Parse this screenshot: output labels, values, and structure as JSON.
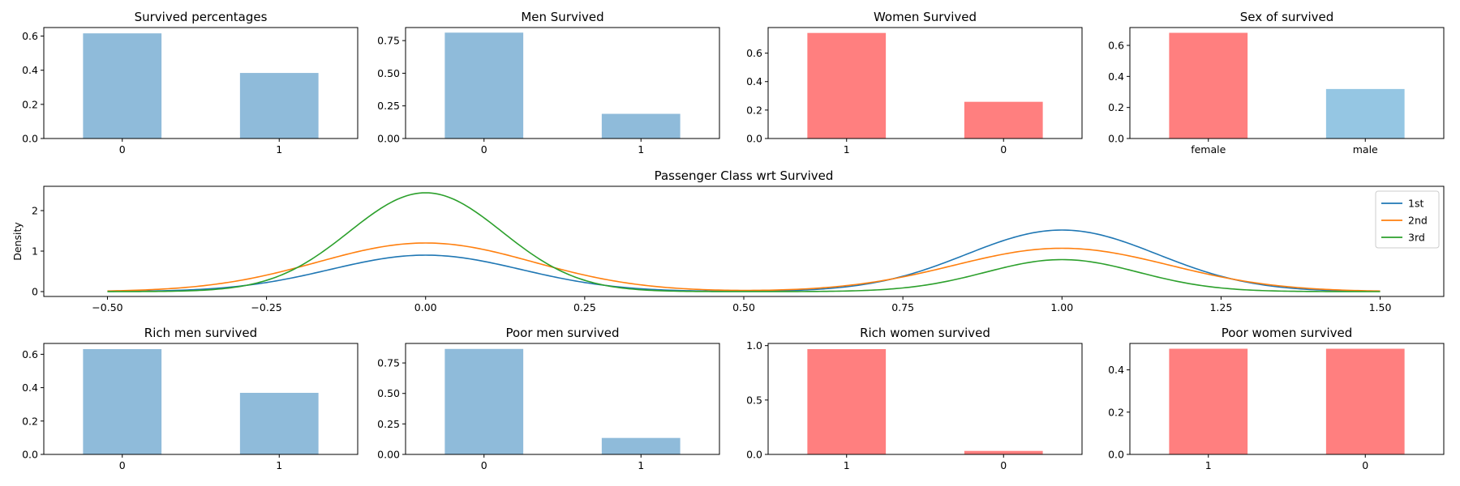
{
  "chart_data": [
    {
      "id": "survived",
      "type": "bar",
      "title": "Survived percentages",
      "categories": [
        "0",
        "1"
      ],
      "values": [
        0.616,
        0.384
      ],
      "ylim": [
        0,
        0.65
      ],
      "yticks": [
        0.0,
        0.2,
        0.4,
        0.6
      ],
      "ytick_labels": [
        "0.0",
        "0.2",
        "0.4",
        "0.6"
      ],
      "colors": [
        "#8fbbda",
        "#8fbbda"
      ],
      "grid": false
    },
    {
      "id": "men",
      "type": "bar",
      "title": "Men Survived",
      "categories": [
        "0",
        "1"
      ],
      "values": [
        0.811,
        0.189
      ],
      "ylim": [
        0,
        0.85
      ],
      "yticks": [
        0.0,
        0.25,
        0.5,
        0.75
      ],
      "ytick_labels": [
        "0.00",
        "0.25",
        "0.50",
        "0.75"
      ],
      "colors": [
        "#8fbbda",
        "#8fbbda"
      ],
      "grid": false
    },
    {
      "id": "women",
      "type": "bar",
      "title": "Women Survived",
      "categories": [
        "1",
        "0"
      ],
      "values": [
        0.742,
        0.258
      ],
      "ylim": [
        0,
        0.78
      ],
      "yticks": [
        0.0,
        0.2,
        0.4,
        0.6
      ],
      "ytick_labels": [
        "0.0",
        "0.2",
        "0.4",
        "0.6"
      ],
      "colors": [
        "#ff7f7f",
        "#ff7f7f"
      ],
      "grid": false
    },
    {
      "id": "sex",
      "type": "bar",
      "title": "Sex of survived",
      "categories": [
        "female",
        "male"
      ],
      "values": [
        0.681,
        0.319
      ],
      "ylim": [
        0,
        0.715
      ],
      "yticks": [
        0.0,
        0.2,
        0.4,
        0.6
      ],
      "ytick_labels": [
        "0.0",
        "0.2",
        "0.4",
        "0.6"
      ],
      "colors": [
        "#ff7f7f",
        "#95c6e3"
      ],
      "grid": false
    },
    {
      "id": "pclass",
      "type": "line",
      "title": "Passenger Class wrt Survived",
      "xlabel": "",
      "ylabel": "Density",
      "xlim": [
        -0.6,
        1.6
      ],
      "ylim": [
        -0.12,
        2.6
      ],
      "xticks": [
        -0.5,
        -0.25,
        0.0,
        0.25,
        0.5,
        0.75,
        1.0,
        1.25,
        1.5
      ],
      "xtick_labels": [
        "−0.50",
        "−0.25",
        "0.00",
        "0.25",
        "0.50",
        "0.75",
        "1.00",
        "1.25",
        "1.50"
      ],
      "yticks": [
        0,
        1,
        2
      ],
      "ytick_labels": [
        "0",
        "1",
        "2"
      ],
      "legend_position": "top-right",
      "x_range": [
        -0.5,
        1.5
      ],
      "series": [
        {
          "name": "1st",
          "color": "#1f77b4",
          "peak_at_0": 0.9,
          "peak_at_1": 1.52,
          "bandwidth_at_0": 0.15,
          "bandwidth_at_1": 0.15
        },
        {
          "name": "2nd",
          "color": "#ff7f0e",
          "peak_at_0": 1.2,
          "peak_at_1": 1.07,
          "bandwidth_at_0": 0.17,
          "bandwidth_at_1": 0.17
        },
        {
          "name": "3rd",
          "color": "#2ca02c",
          "peak_at_0": 2.44,
          "peak_at_1": 0.79,
          "bandwidth_at_0": 0.12,
          "bandwidth_at_1": 0.12
        }
      ]
    },
    {
      "id": "richmen",
      "type": "bar",
      "title": "Rich men survived",
      "categories": [
        "0",
        "1"
      ],
      "values": [
        0.631,
        0.369
      ],
      "ylim": [
        0,
        0.665
      ],
      "yticks": [
        0.0,
        0.2,
        0.4,
        0.6
      ],
      "ytick_labels": [
        "0.0",
        "0.2",
        "0.4",
        "0.6"
      ],
      "colors": [
        "#8fbbda",
        "#8fbbda"
      ],
      "grid": false
    },
    {
      "id": "poormen",
      "type": "bar",
      "title": "Poor men survived",
      "categories": [
        "0",
        "1"
      ],
      "values": [
        0.865,
        0.135
      ],
      "ylim": [
        0,
        0.91
      ],
      "yticks": [
        0.0,
        0.25,
        0.5,
        0.75
      ],
      "ytick_labels": [
        "0.00",
        "0.25",
        "0.50",
        "0.75"
      ],
      "colors": [
        "#8fbbda",
        "#8fbbda"
      ],
      "grid": false
    },
    {
      "id": "richwomen",
      "type": "bar",
      "title": "Rich women survived",
      "categories": [
        "1",
        "0"
      ],
      "values": [
        0.968,
        0.032
      ],
      "ylim": [
        0,
        1.02
      ],
      "yticks": [
        0.0,
        0.5,
        1.0
      ],
      "ytick_labels": [
        "0.0",
        "0.5",
        "1.0"
      ],
      "colors": [
        "#ff7f7f",
        "#ff7f7f"
      ],
      "grid": false
    },
    {
      "id": "poorwomen",
      "type": "bar",
      "title": "Poor women survived",
      "categories": [
        "1",
        "0"
      ],
      "values": [
        0.5,
        0.5
      ],
      "ylim": [
        0,
        0.525
      ],
      "yticks": [
        0.0,
        0.2,
        0.4
      ],
      "ytick_labels": [
        "0.0",
        "0.2",
        "0.4"
      ],
      "colors": [
        "#ff7f7f",
        "#ff7f7f"
      ],
      "grid": false
    }
  ]
}
